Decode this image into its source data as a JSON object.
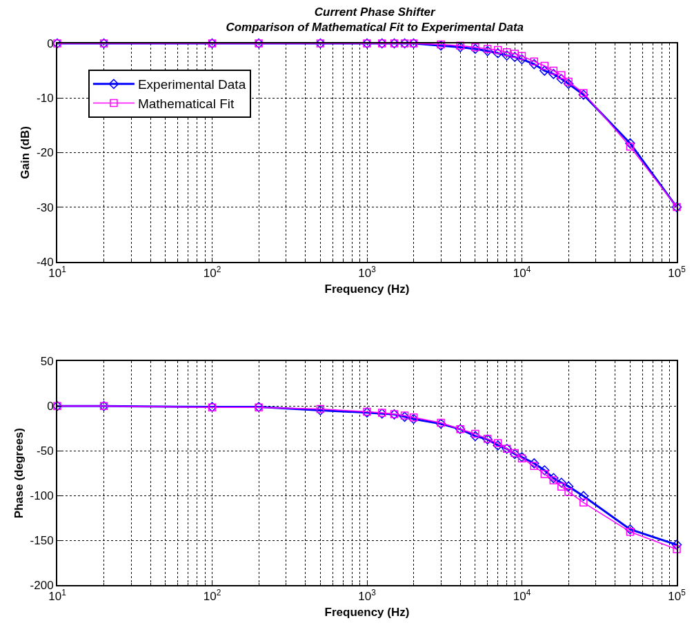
{
  "chart_data": [
    {
      "type": "line",
      "title": "Current Phase Shifter\nComparison of Mathematical Fit to Experimental Data",
      "xlabel": "Frequency (Hz)",
      "ylabel": "Gain (dB)",
      "log": "x",
      "grid": true,
      "legend": "top left",
      "x": [
        10,
        20,
        100,
        200,
        500,
        1000,
        1250,
        1500,
        1750,
        2000,
        3000,
        4000,
        5000,
        6000,
        7000,
        8000,
        9000,
        10000,
        12000,
        14000,
        16000,
        18000,
        20000,
        25000,
        50000,
        100000
      ],
      "xlim": [
        10,
        100000
      ],
      "xticks": [
        {
          "value": 10,
          "label": "10$^{1}$"
        },
        {
          "value": 100,
          "label": "10$^{2}$"
        },
        {
          "value": 1000,
          "label": "10$^{3}$"
        },
        {
          "value": 10000,
          "label": "10$^{4}$"
        },
        {
          "value": 100000,
          "label": "10$^{5}$"
        }
      ],
      "ylim": [
        -40,
        0
      ],
      "yticks": [
        -40,
        -30,
        -20,
        -10,
        0
      ],
      "series": [
        {
          "name": "Experimental Data",
          "color": "#0000ff",
          "marker": "diamond",
          "values": [
            0,
            0,
            0,
            0,
            0,
            0,
            0,
            0,
            0,
            0,
            -0.4,
            -0.7,
            -1.0,
            -1.4,
            -1.8,
            -2.2,
            -2.5,
            -2.9,
            -3.8,
            -5.0,
            -5.6,
            -6.5,
            -7.4,
            -9.4,
            -18.3,
            -30
          ]
        },
        {
          "name": "Mathematical Fit",
          "color": "#ff00ff",
          "marker": "square",
          "values": [
            0,
            0,
            0,
            0,
            0,
            0,
            0,
            0,
            0,
            0,
            -0.2,
            -0.4,
            -0.7,
            -1.0,
            -1.2,
            -1.6,
            -1.9,
            -2.3,
            -3.3,
            -4.1,
            -5.0,
            -5.8,
            -7.0,
            -9.1,
            -18.9,
            -30
          ]
        }
      ]
    },
    {
      "type": "line",
      "xlabel": "Frequency (Hz)",
      "ylabel": "Phase (degrees)",
      "log": "x",
      "grid": true,
      "x": [
        10,
        20,
        100,
        200,
        500,
        1000,
        1250,
        1500,
        1750,
        2000,
        3000,
        4000,
        5000,
        6000,
        7000,
        8000,
        9000,
        10000,
        12000,
        14000,
        16000,
        18000,
        20000,
        25000,
        50000,
        100000
      ],
      "xlim": [
        10,
        100000
      ],
      "xticks": [
        {
          "value": 10,
          "label": "10$^{1}$"
        },
        {
          "value": 100,
          "label": "10$^{2}$"
        },
        {
          "value": 1000,
          "label": "10$^{3}$"
        },
        {
          "value": 10000,
          "label": "10$^{4}$"
        },
        {
          "value": 100000,
          "label": "10$^{5}$"
        }
      ],
      "ylim": [
        -200,
        50
      ],
      "yticks": [
        -200,
        -150,
        -100,
        -50,
        0,
        50
      ],
      "series": [
        {
          "color": "#0000ff",
          "marker": "diamond",
          "values": [
            0,
            0,
            -1,
            -1,
            -4.8,
            -7.2,
            -8.4,
            -9.3,
            -12,
            -14.4,
            -19.8,
            -25.8,
            -33.6,
            -37.2,
            -44,
            -47.7,
            -53.7,
            -57,
            -64,
            -71.8,
            -80.5,
            -85.6,
            -89.8,
            -100.6,
            -137.8,
            -155
          ]
        },
        {
          "color": "#ff00ff",
          "marker": "square",
          "values": [
            0,
            0,
            -1.5,
            -1.5,
            -3.3,
            -6.3,
            -7.5,
            -9,
            -10.5,
            -12.6,
            -18.6,
            -25.8,
            -30.9,
            -36.6,
            -41.4,
            -47.7,
            -52.5,
            -58.5,
            -67,
            -76,
            -83,
            -90,
            -95.8,
            -107.8,
            -140.5,
            -160
          ]
        }
      ]
    }
  ]
}
